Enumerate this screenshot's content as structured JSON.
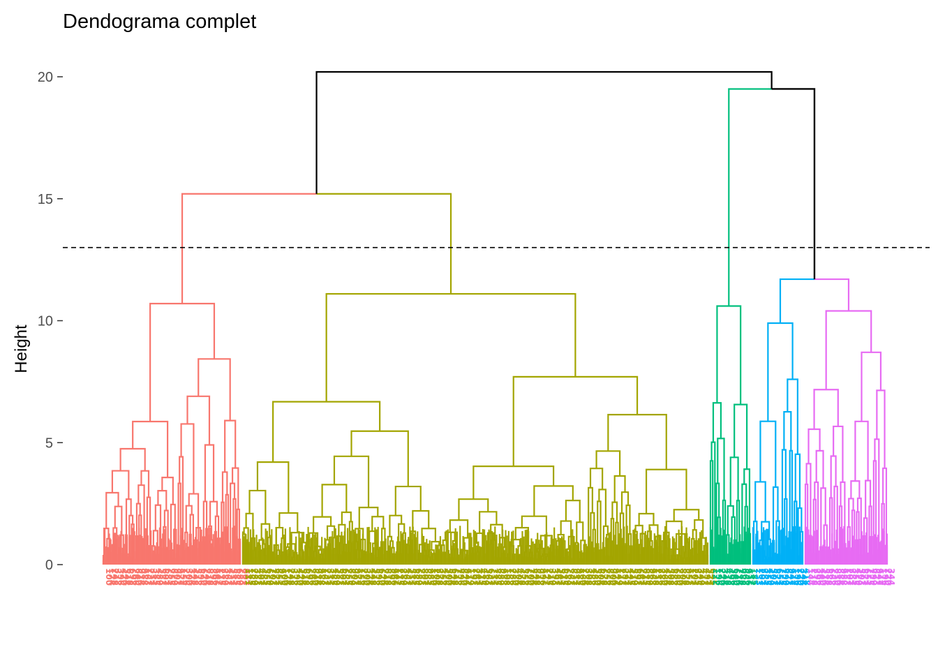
{
  "chart_data": {
    "type": "dendrogram",
    "title": "Dendograma complet",
    "ylabel": "Height",
    "xlabel": "",
    "ylim": [
      0,
      20
    ],
    "y_ticks": [
      0,
      5,
      10,
      15,
      20
    ],
    "grid": false,
    "cut_height": 13,
    "cut_line_style": "dashed",
    "root_color": "#000000",
    "clusters": [
      {
        "color": "#F8766D",
        "approx_leaves": 93
      },
      {
        "color": "#A3A500",
        "approx_leaves": 307
      },
      {
        "color": "#00BF7D",
        "approx_leaves": 28
      },
      {
        "color": "#00B0F6",
        "approx_leaves": 34
      },
      {
        "color": "#E76BF3",
        "approx_leaves": 56
      }
    ],
    "merges": [
      {
        "left": "cluster-1",
        "right": "cluster-2",
        "height": 15.2
      },
      {
        "left": "cluster-4",
        "right": "cluster-5",
        "height": 11.7
      },
      {
        "left": "cluster-3",
        "right": "cluster-4+5",
        "height": 19.5
      },
      {
        "left": "cluster-1+2",
        "right": "cluster-3+4+5",
        "height": 20.2
      }
    ],
    "cluster_heights": [
      10.7,
      11.1,
      10.6,
      9.9,
      10.4
    ]
  }
}
